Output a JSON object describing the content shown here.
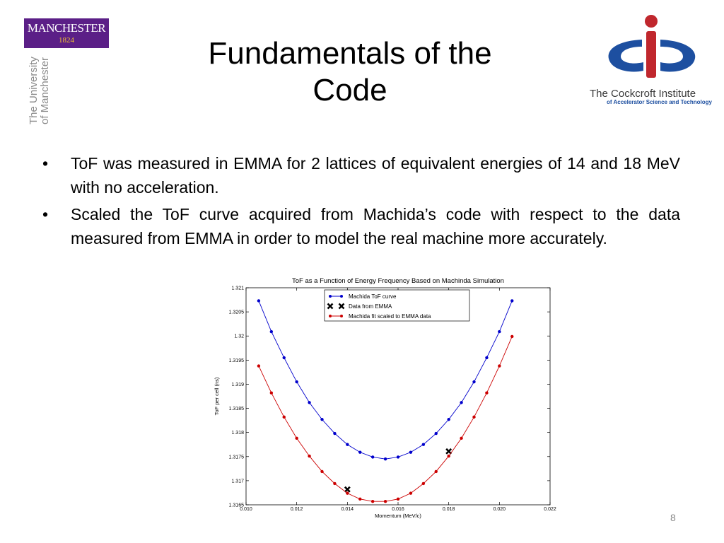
{
  "logos": {
    "manchester": {
      "name": "MANCHESTER",
      "year": "1824",
      "vertical_text": [
        "The University",
        "of Manchester"
      ]
    },
    "cockcroft": {
      "name": "The Cockcroft Institute",
      "subtitle": "of Accelerator Science and Technology"
    }
  },
  "slide": {
    "title_line1": "Fundamentals of the",
    "title_line2": "Code",
    "bullets": [
      "ToF was measured in EMMA for 2 lattices of equivalent energies of 14 and 18 MeV with no acceleration.",
      "Scaled the ToF curve acquired from Machida’s code with respect to the data measured from EMMA in order to model the real machine more accurately."
    ],
    "bullet_symbol": "•",
    "page_number": "8"
  },
  "chart_data": {
    "type": "line",
    "title": "ToF as a Function of Energy Frequency Based on Machinda Simulation",
    "xlabel": "Momentum (MeV/c)",
    "ylabel": "ToF per cell (ns)",
    "xlim": [
      0.01,
      0.022
    ],
    "ylim": [
      1.3165,
      1.321
    ],
    "xticks": [
      "0.010",
      "0.012",
      "0.014",
      "0.016",
      "0.018",
      "0.020",
      "0.022"
    ],
    "yticks": [
      "1.3165",
      "1.317",
      "1.3175",
      "1.318",
      "1.3185",
      "1.319",
      "1.3195",
      "1.32",
      "1.3205",
      "1.321"
    ],
    "legend_position": "top-center",
    "series": [
      {
        "name": "Machida ToF curve",
        "color": "#0000cc",
        "style": "line-marker",
        "x": [
          0.0105,
          0.011,
          0.0115,
          0.012,
          0.0125,
          0.013,
          0.0135,
          0.014,
          0.0145,
          0.015,
          0.0155,
          0.016,
          0.0165,
          0.017,
          0.0175,
          0.018,
          0.0185,
          0.019,
          0.0195,
          0.02,
          0.0205
        ],
        "y": [
          1.32073,
          1.32009,
          1.31955,
          1.31905,
          1.31862,
          1.31827,
          1.31798,
          1.31775,
          1.31759,
          1.31749,
          1.31745,
          1.31749,
          1.31759,
          1.31775,
          1.31798,
          1.31827,
          1.31862,
          1.31905,
          1.31955,
          1.32009,
          1.32073
        ]
      },
      {
        "name": "Data from EMMA",
        "color": "#000000",
        "style": "x-marker",
        "x": [
          0.014,
          0.018
        ],
        "y": [
          1.31682,
          1.31761
        ]
      },
      {
        "name": "Machida fit scaled to EMMA data",
        "color": "#cc0000",
        "style": "line-marker",
        "x": [
          0.0105,
          0.011,
          0.0115,
          0.012,
          0.0125,
          0.013,
          0.0135,
          0.014,
          0.0145,
          0.015,
          0.0155,
          0.016,
          0.0165,
          0.017,
          0.0175,
          0.018,
          0.0185,
          0.019,
          0.0195,
          0.02,
          0.0205
        ],
        "y": [
          1.31938,
          1.31882,
          1.31832,
          1.31788,
          1.31751,
          1.31719,
          1.31694,
          1.31674,
          1.31662,
          1.31657,
          1.31657,
          1.31662,
          1.31674,
          1.31694,
          1.31719,
          1.31751,
          1.31788,
          1.31832,
          1.31882,
          1.31938,
          1.31999
        ]
      }
    ]
  }
}
